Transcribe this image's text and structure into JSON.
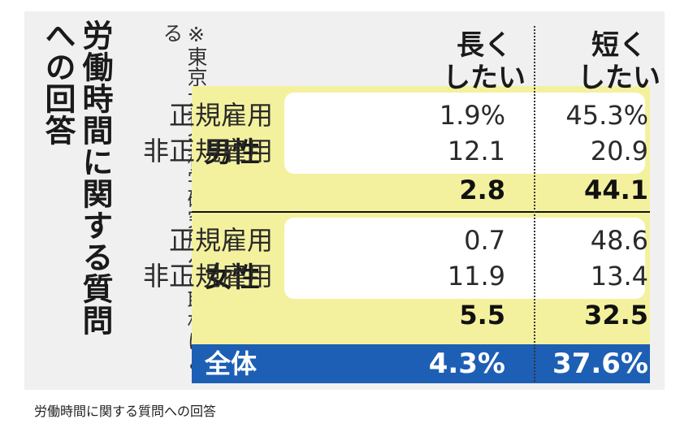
{
  "chart_data": {
    "type": "table",
    "title": "労働時間に関する質問への回答",
    "note": "※東京大社会科学研究所への取材による",
    "columns": [
      "長く\nしたい",
      "短く\nしたい"
    ],
    "groups": [
      {
        "label": "男性",
        "rows": [
          {
            "label": "正規雇用",
            "values": [
              "1.9%",
              "45.3%"
            ]
          },
          {
            "label": "非正規雇用",
            "values": [
              "12.1",
              "20.9"
            ]
          }
        ],
        "total": [
          "2.8",
          "44.1"
        ]
      },
      {
        "label": "女性",
        "rows": [
          {
            "label": "正規雇用",
            "values": [
              "0.7",
              "48.6"
            ]
          },
          {
            "label": "非正規雇用",
            "values": [
              "11.9",
              "13.4"
            ]
          }
        ],
        "total": [
          "5.5",
          "32.5"
        ]
      }
    ],
    "overall": {
      "label": "全体",
      "values": [
        "4.3%",
        "37.6%"
      ]
    },
    "colors": {
      "highlight": "#f4f19e",
      "overall_bar": "#1d5fb4",
      "background": "#f0f0f0"
    }
  },
  "caption": "労働時間に関する質問への回答"
}
